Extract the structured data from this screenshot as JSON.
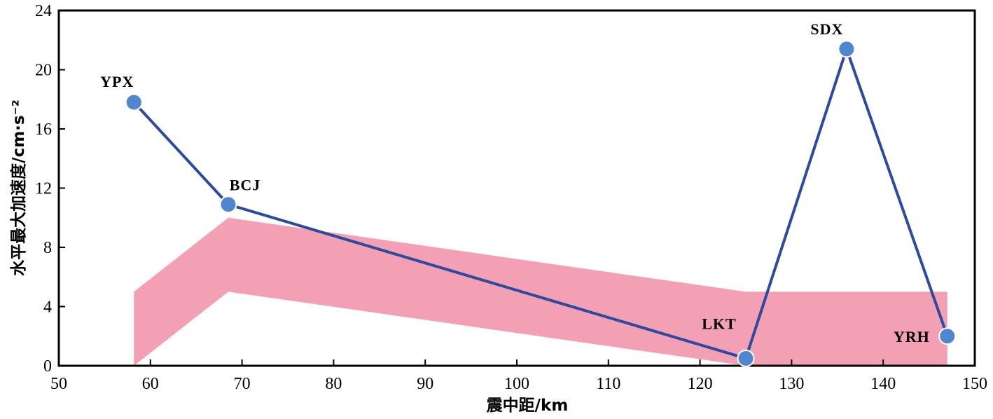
{
  "chart_data": {
    "type": "line",
    "xlabel": "震中距/km",
    "ylabel": "水平最大加速度/cm·s⁻²",
    "xlim": [
      50,
      150
    ],
    "ylim": [
      0,
      24
    ],
    "xticks": [
      "50",
      "60",
      "70",
      "80",
      "90",
      "100",
      "110",
      "120",
      "130",
      "140",
      "150"
    ],
    "yticks": [
      "0",
      "4",
      "8",
      "12",
      "16",
      "20",
      "24"
    ],
    "grid": false,
    "legend": "none",
    "series": [
      {
        "color": "#2b4aa0",
        "marker_color": "#4f86d0",
        "points": [
          {
            "label": "YPX",
            "x": 58.2,
            "y": 17.8
          },
          {
            "label": "BCJ",
            "x": 68.5,
            "y": 10.9
          },
          {
            "label": "LKT",
            "x": 125.0,
            "y": 0.5
          },
          {
            "label": "SDX",
            "x": 136.0,
            "y": 21.4
          },
          {
            "label": "YRH",
            "x": 147.0,
            "y": 2.0
          }
        ]
      }
    ],
    "band": {
      "color": "#f4a0b4",
      "upper": [
        [
          58.2,
          5.0
        ],
        [
          68.5,
          10.0
        ],
        [
          125.0,
          5.0
        ],
        [
          147.0,
          5.0
        ]
      ],
      "lower": [
        [
          58.2,
          0.0
        ],
        [
          68.5,
          5.0
        ],
        [
          125.0,
          0.0
        ],
        [
          147.0,
          0.0
        ]
      ]
    }
  }
}
